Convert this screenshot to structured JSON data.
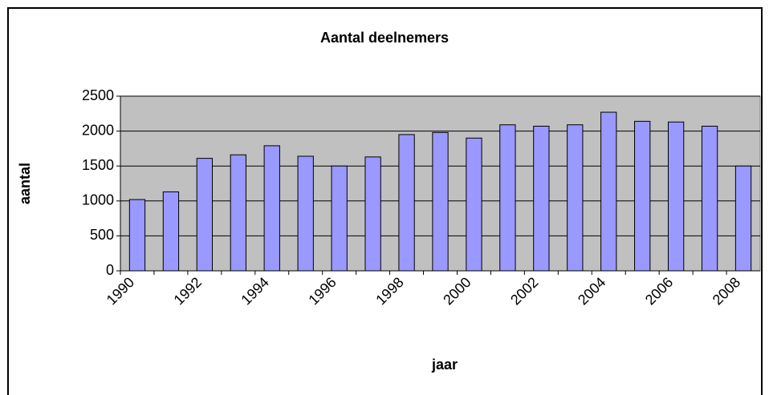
{
  "chart_data": {
    "type": "bar",
    "title": "Aantal deelnemers",
    "x_label": "jaar",
    "y_label": "aantal",
    "categories": [
      "1990",
      null,
      "1992",
      null,
      "1994",
      null,
      "1996",
      null,
      "1998",
      null,
      "2000",
      null,
      "2002",
      null,
      "2004",
      null,
      "2006",
      null,
      "2008"
    ],
    "values": [
      1020,
      1130,
      1610,
      1660,
      1790,
      1640,
      1500,
      1630,
      1950,
      1980,
      1900,
      2090,
      2070,
      2090,
      2270,
      2140,
      2130,
      2070,
      1500
    ],
    "color": "#9999ff",
    "ylim": [
      0,
      2500
    ],
    "yticks": [
      0,
      500,
      1000,
      1500,
      2000,
      2500
    ],
    "grid": true
  }
}
